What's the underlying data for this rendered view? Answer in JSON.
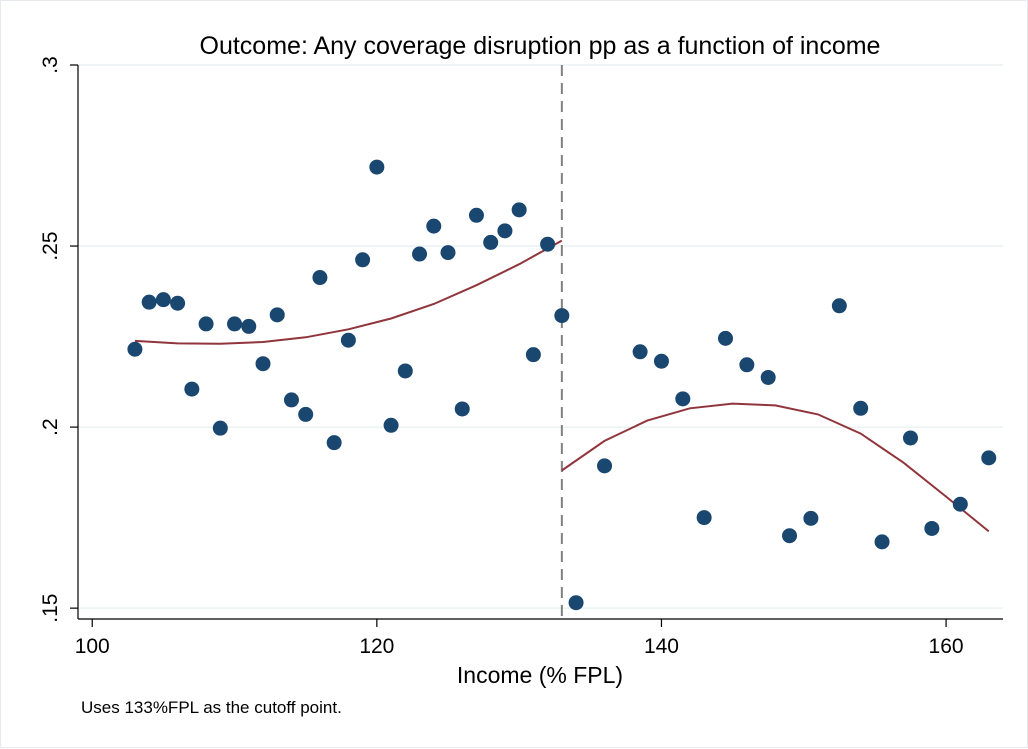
{
  "chart_data": {
    "type": "scatter",
    "title": "Outcome: Any coverage disruption pp as a function of income",
    "xlabel": "Income (% FPL)",
    "ylabel": "",
    "note": "Uses 133%FPL as the cutoff point.",
    "xlim": [
      99,
      164
    ],
    "ylim": [
      0.147,
      0.3
    ],
    "x_ticks": [
      100,
      120,
      140,
      160
    ],
    "x_tick_labels": [
      "100",
      "120",
      "140",
      "160"
    ],
    "y_ticks": [
      0.15,
      0.2,
      0.25,
      0.3
    ],
    "y_tick_labels": [
      ".15",
      ".2",
      ".25",
      ".3"
    ],
    "grid": true,
    "cutoff_x": 133,
    "colors": {
      "points": "#1a476f",
      "fit": "#90353b",
      "grid": "#eaf2f3",
      "cutoff": "#808080"
    },
    "points": [
      {
        "x": 103,
        "y": 0.2215
      },
      {
        "x": 104,
        "y": 0.2345
      },
      {
        "x": 105,
        "y": 0.2352
      },
      {
        "x": 106,
        "y": 0.2342
      },
      {
        "x": 107,
        "y": 0.2105
      },
      {
        "x": 108,
        "y": 0.2285
      },
      {
        "x": 109,
        "y": 0.1997
      },
      {
        "x": 110,
        "y": 0.2285
      },
      {
        "x": 111,
        "y": 0.2278
      },
      {
        "x": 112,
        "y": 0.2175
      },
      {
        "x": 113,
        "y": 0.231
      },
      {
        "x": 114,
        "y": 0.2075
      },
      {
        "x": 115,
        "y": 0.2035
      },
      {
        "x": 116,
        "y": 0.2413
      },
      {
        "x": 117,
        "y": 0.1957
      },
      {
        "x": 118,
        "y": 0.224
      },
      {
        "x": 119,
        "y": 0.2462
      },
      {
        "x": 120,
        "y": 0.2718
      },
      {
        "x": 121,
        "y": 0.2005
      },
      {
        "x": 122,
        "y": 0.2155
      },
      {
        "x": 123,
        "y": 0.2478
      },
      {
        "x": 124,
        "y": 0.2555
      },
      {
        "x": 125,
        "y": 0.2482
      },
      {
        "x": 126,
        "y": 0.205
      },
      {
        "x": 127,
        "y": 0.2585
      },
      {
        "x": 128,
        "y": 0.251
      },
      {
        "x": 129,
        "y": 0.2542
      },
      {
        "x": 130,
        "y": 0.26
      },
      {
        "x": 131,
        "y": 0.22
      },
      {
        "x": 132,
        "y": 0.2505
      },
      {
        "x": 133,
        "y": 0.2308
      },
      {
        "x": 134,
        "y": 0.1515
      },
      {
        "x": 136,
        "y": 0.1893
      },
      {
        "x": 138.5,
        "y": 0.2208
      },
      {
        "x": 140,
        "y": 0.2182
      },
      {
        "x": 141.5,
        "y": 0.2078
      },
      {
        "x": 143,
        "y": 0.175
      },
      {
        "x": 144.5,
        "y": 0.2245
      },
      {
        "x": 146,
        "y": 0.2172
      },
      {
        "x": 147.5,
        "y": 0.2137
      },
      {
        "x": 149,
        "y": 0.17
      },
      {
        "x": 150.5,
        "y": 0.1748
      },
      {
        "x": 152.5,
        "y": 0.2335
      },
      {
        "x": 154,
        "y": 0.2052
      },
      {
        "x": 155.5,
        "y": 0.1683
      },
      {
        "x": 157.5,
        "y": 0.197
      },
      {
        "x": 159,
        "y": 0.172
      },
      {
        "x": 161,
        "y": 0.1787
      },
      {
        "x": 163,
        "y": 0.1915
      }
    ],
    "fit_left": [
      {
        "x": 103,
        "y": 0.2238
      },
      {
        "x": 106,
        "y": 0.2231
      },
      {
        "x": 109,
        "y": 0.223
      },
      {
        "x": 112,
        "y": 0.2235
      },
      {
        "x": 115,
        "y": 0.2248
      },
      {
        "x": 118,
        "y": 0.227
      },
      {
        "x": 121,
        "y": 0.23
      },
      {
        "x": 124,
        "y": 0.234
      },
      {
        "x": 127,
        "y": 0.2392
      },
      {
        "x": 130,
        "y": 0.245
      },
      {
        "x": 133,
        "y": 0.2515
      }
    ],
    "fit_right": [
      {
        "x": 133,
        "y": 0.188
      },
      {
        "x": 136,
        "y": 0.1962
      },
      {
        "x": 139,
        "y": 0.2018
      },
      {
        "x": 142,
        "y": 0.2052
      },
      {
        "x": 145,
        "y": 0.2065
      },
      {
        "x": 148,
        "y": 0.206
      },
      {
        "x": 151,
        "y": 0.2035
      },
      {
        "x": 154,
        "y": 0.1982
      },
      {
        "x": 157,
        "y": 0.1902
      },
      {
        "x": 160,
        "y": 0.1808
      },
      {
        "x": 163,
        "y": 0.1712
      }
    ]
  }
}
